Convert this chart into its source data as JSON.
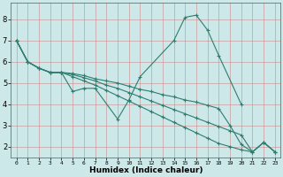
{
  "xlabel": "Humidex (Indice chaleur)",
  "bg_color": "#cce8e8",
  "line_color": "#2e7d70",
  "grid_color_h": "#cc8888",
  "grid_color_v": "#cc8888",
  "xlim": [
    -0.5,
    23.5
  ],
  "ylim": [
    1.5,
    8.8
  ],
  "ytick_vals": [
    2,
    3,
    4,
    5,
    6,
    7,
    8
  ],
  "lines": [
    {
      "x": [
        0,
        1,
        2,
        3,
        4,
        5,
        6,
        7,
        9,
        10,
        11,
        14,
        15,
        16,
        17,
        18,
        20
      ],
      "y": [
        7.0,
        6.0,
        5.7,
        5.5,
        5.5,
        4.6,
        4.75,
        4.75,
        3.3,
        4.2,
        5.3,
        7.0,
        8.1,
        8.2,
        7.5,
        6.3,
        4.0
      ]
    },
    {
      "x": [
        0,
        1,
        2,
        3,
        4,
        5,
        6,
        7,
        8,
        9,
        10,
        11,
        12,
        13,
        14,
        15,
        16,
        17,
        18,
        19,
        20,
        21,
        22,
        23
      ],
      "y": [
        7.0,
        6.0,
        5.7,
        5.5,
        5.5,
        5.45,
        5.35,
        5.2,
        5.1,
        5.0,
        4.85,
        4.7,
        4.6,
        4.45,
        4.35,
        4.2,
        4.1,
        3.95,
        3.8,
        3.0,
        2.1,
        1.75,
        2.2,
        1.75
      ]
    },
    {
      "x": [
        0,
        1,
        2,
        3,
        4,
        5,
        6,
        7,
        8,
        9,
        10,
        11,
        12,
        13,
        14,
        15,
        16,
        17,
        18,
        19,
        20,
        21,
        22,
        23
      ],
      "y": [
        7.0,
        6.0,
        5.7,
        5.5,
        5.5,
        5.4,
        5.25,
        5.1,
        4.9,
        4.75,
        4.55,
        4.35,
        4.15,
        3.95,
        3.75,
        3.55,
        3.35,
        3.15,
        2.95,
        2.75,
        2.55,
        1.75,
        2.2,
        1.75
      ]
    },
    {
      "x": [
        0,
        1,
        2,
        3,
        4,
        5,
        6,
        7,
        8,
        9,
        10,
        11,
        12,
        13,
        14,
        15,
        16,
        17,
        18,
        19,
        20,
        21,
        22,
        23
      ],
      "y": [
        7.0,
        6.0,
        5.7,
        5.5,
        5.5,
        5.3,
        5.1,
        4.9,
        4.65,
        4.4,
        4.15,
        3.9,
        3.65,
        3.4,
        3.15,
        2.9,
        2.65,
        2.4,
        2.15,
        2.0,
        1.85,
        1.75,
        2.2,
        1.75
      ]
    }
  ]
}
